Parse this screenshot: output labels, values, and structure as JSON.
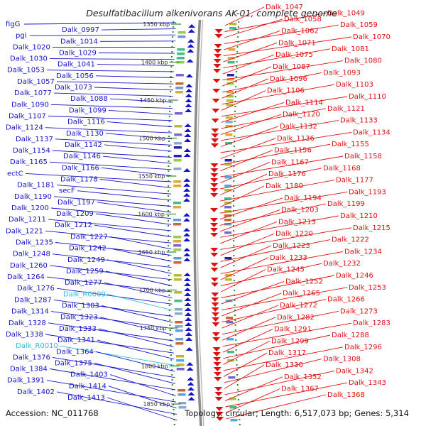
{
  "title": "Desulfatibacillum alkenivorans AK-01, complete genome",
  "footer": {
    "accession": "Accession: NC_011768",
    "topology": "Topology: circular; Length: 6,517,073 bp; Genes: 5,314"
  },
  "colors": {
    "forward_strand": "#1515c8",
    "reverse_strand": "#e01010",
    "rna_gene": "#33bbdd",
    "backbone": "#8a8a8a",
    "tick_dots": "#2a8a2a"
  },
  "scale_ticks": [
    "1350 kbp",
    "1400 kbp",
    "1450 kbp",
    "1500 kbp",
    "1550 kbp",
    "1600 kbp",
    "1650 kbp",
    "1700 kbp",
    "1750 kbp",
    "1800 kbp",
    "1850 kbp"
  ],
  "left_labels": [
    {
      "t": "figG",
      "k": "f"
    },
    {
      "t": "Dalk_0997",
      "k": "f"
    },
    {
      "t": "pgi",
      "k": "f"
    },
    {
      "t": "Dalk_1014",
      "k": "f"
    },
    {
      "t": "Dalk_1020",
      "k": "f"
    },
    {
      "t": "Dalk_1029",
      "k": "f"
    },
    {
      "t": "Dalk_1030",
      "k": "f"
    },
    {
      "t": "Dalk_1041",
      "k": "f"
    },
    {
      "t": "Dalk_1053",
      "k": "f"
    },
    {
      "t": "Dalk_1056",
      "k": "f"
    },
    {
      "t": "Dalk_1057",
      "k": "f"
    },
    {
      "t": "Dalk_1073",
      "k": "f"
    },
    {
      "t": "Dalk_1077",
      "k": "f"
    },
    {
      "t": "Dalk_1088",
      "k": "f"
    },
    {
      "t": "Dalk_1090",
      "k": "f"
    },
    {
      "t": "Dalk_1099",
      "k": "f"
    },
    {
      "t": "Dalk_1107",
      "k": "f"
    },
    {
      "t": "Dalk_1116",
      "k": "f"
    },
    {
      "t": "Dalk_1124",
      "k": "f"
    },
    {
      "t": "Dalk_1130",
      "k": "f"
    },
    {
      "t": "Dalk_1137",
      "k": "f"
    },
    {
      "t": "Dalk_1142",
      "k": "f"
    },
    {
      "t": "Dalk_1154",
      "k": "f"
    },
    {
      "t": "Dalk_1146",
      "k": "f"
    },
    {
      "t": "Dalk_1165",
      "k": "f"
    },
    {
      "t": "Dalk_1166",
      "k": "f"
    },
    {
      "t": "ectC",
      "k": "f"
    },
    {
      "t": "Dalk_1178",
      "k": "f"
    },
    {
      "t": "Dalk_1181",
      "k": "f"
    },
    {
      "t": "secF",
      "k": "f"
    },
    {
      "t": "Dalk_1190",
      "k": "f"
    },
    {
      "t": "Dalk_1197",
      "k": "f"
    },
    {
      "t": "Dalk_1200",
      "k": "f"
    },
    {
      "t": "Dalk_1209",
      "k": "f"
    },
    {
      "t": "Dalk_1211",
      "k": "f"
    },
    {
      "t": "Dalk_1212",
      "k": "f"
    },
    {
      "t": "Dalk_1221",
      "k": "f"
    },
    {
      "t": "Dalk_1227",
      "k": "f"
    },
    {
      "t": "Dalk_1235",
      "k": "f"
    },
    {
      "t": "Dalk_1242",
      "k": "f"
    },
    {
      "t": "Dalk_1248",
      "k": "f"
    },
    {
      "t": "Dalk_1249",
      "k": "f"
    },
    {
      "t": "Dalk_1260",
      "k": "f"
    },
    {
      "t": "Dalk_1259",
      "k": "f"
    },
    {
      "t": "Dalk_1264",
      "k": "f"
    },
    {
      "t": "Dalk_1277",
      "k": "f"
    },
    {
      "t": "Dalk_1276",
      "k": "f"
    },
    {
      "t": "Dalk_R0009",
      "k": "r"
    },
    {
      "t": "Dalk_1287",
      "k": "f"
    },
    {
      "t": "Dalk_1303",
      "k": "f"
    },
    {
      "t": "Dalk_1314",
      "k": "f"
    },
    {
      "t": "Dalk_1323",
      "k": "f"
    },
    {
      "t": "Dalk_1328",
      "k": "f"
    },
    {
      "t": "Dalk_1333",
      "k": "f"
    },
    {
      "t": "Dalk_1338",
      "k": "f"
    },
    {
      "t": "Dalk_1341",
      "k": "f"
    },
    {
      "t": "Dalk_R0010",
      "k": "r"
    },
    {
      "t": "Dalk_1364",
      "k": "f"
    },
    {
      "t": "Dalk_1376",
      "k": "f"
    },
    {
      "t": "Dalk_1375",
      "k": "f"
    },
    {
      "t": "Dalk_1384",
      "k": "f"
    },
    {
      "t": "Dalk_1403",
      "k": "f"
    },
    {
      "t": "Dalk_1391",
      "k": "f"
    },
    {
      "t": "Dalk_1414",
      "k": "f"
    },
    {
      "t": "Dalk_1402",
      "k": "f"
    },
    {
      "t": "Dalk_1413",
      "k": "f"
    }
  ],
  "right_labels": [
    "Dalk_1047",
    "Dalk_1049",
    "Dalk_1058",
    "Dalk_1059",
    "Dalk_1062",
    "Dalk_1070",
    "Dalk_1071",
    "Dalk_1081",
    "Dalk_1075",
    "Dalk_1080",
    "Dalk_1087",
    "Dalk_1093",
    "Dalk_1096",
    "Dalk_1103",
    "Dalk_1106",
    "Dalk_1110",
    "Dalk_1114",
    "Dalk_1121",
    "Dalk_1120",
    "Dalk_1133",
    "Dalk_1132",
    "Dalk_1134",
    "Dalk_1136",
    "Dalk_1155",
    "Dalk_1156",
    "Dalk_1158",
    "Dalk_1167",
    "Dalk_1168",
    "Dalk_1176",
    "Dalk_1177",
    "Dalk_1180",
    "Dalk_1193",
    "Dalk_1194",
    "Dalk_1199",
    "Dalk_1203",
    "Dalk_1210",
    "Dalk_1213",
    "Dalk_1215",
    "Dalk_1220",
    "Dalk_1222",
    "Dalk_1223",
    "Dalk_1234",
    "Dalk_1233",
    "Dalk_1232",
    "Dalk_1245",
    "Dalk_1246",
    "Dalk_1252",
    "Dalk_1253",
    "Dalk_1265",
    "Dalk_1266",
    "Dalk_1272",
    "Dalk_1273",
    "Dalk_1282",
    "Dalk_1283",
    "Dalk_1291",
    "Dalk_1288",
    "Dalk_1299",
    "Dalk_1296",
    "Dalk_1317",
    "Dalk_1308",
    "Dalk_1330",
    "Dalk_1342",
    "Dalk_1352",
    "Dalk_1343",
    "Dalk_1367",
    "Dalk_1368"
  ]
}
